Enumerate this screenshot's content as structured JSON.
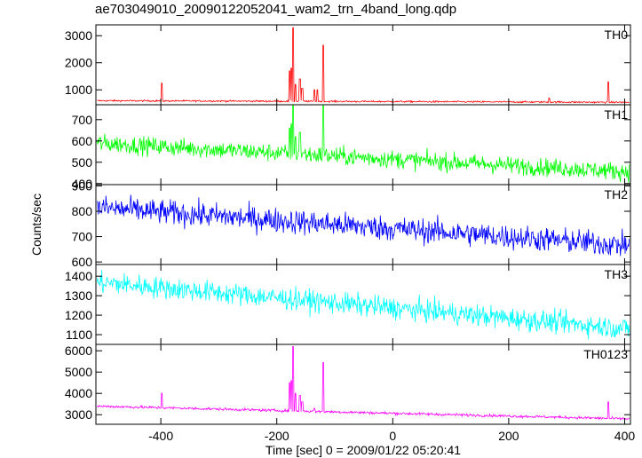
{
  "chart_data": {
    "type": "line",
    "title": "ae703049010_20090122052041_wam2_trn_4band_long.qdp",
    "xlabel": "Time [sec] 0 = 2009/01/22 05:20:41",
    "ylabel": "Counts/sec",
    "xlim": [
      -512,
      410
    ],
    "xticks": [
      -400,
      -200,
      0,
      200,
      400
    ],
    "panels": [
      {
        "name": "TH0",
        "color": "#ff0000",
        "ylim": [
          450,
          3400
        ],
        "yticks": [
          1000,
          2000,
          3000
        ],
        "start": 600,
        "end": 540,
        "noise": 22,
        "spikes": [
          [
            -398,
            1250
          ],
          [
            -178,
            1700
          ],
          [
            -175,
            1800
          ],
          [
            -172,
            3300
          ],
          [
            -168,
            1200
          ],
          [
            -160,
            1400
          ],
          [
            -156,
            1050
          ],
          [
            -135,
            1000
          ],
          [
            -130,
            1000
          ],
          [
            -120,
            2650
          ],
          [
            270,
            700
          ],
          [
            372,
            1300
          ]
        ]
      },
      {
        "name": "TH1",
        "color": "#00ff00",
        "ylim": [
          395,
          770
        ],
        "yticks": [
          400,
          500,
          600,
          700
        ],
        "start": 590,
        "end": 455,
        "noise": 30,
        "spikes": [
          [
            -178,
            660
          ],
          [
            -175,
            680
          ],
          [
            -172,
            770
          ],
          [
            -168,
            620
          ],
          [
            -160,
            640
          ],
          [
            -120,
            770
          ]
        ]
      },
      {
        "name": "TH2",
        "color": "#0000ff",
        "ylim": [
          590,
          905
        ],
        "yticks": [
          600,
          700,
          800,
          900
        ],
        "start": 815,
        "end": 665,
        "noise": 35,
        "spikes": []
      },
      {
        "name": "TH3",
        "color": "#00ffff",
        "ylim": [
          1050,
          1460
        ],
        "yticks": [
          1100,
          1200,
          1300,
          1400
        ],
        "start": 1370,
        "end": 1130,
        "noise": 40,
        "spikes": []
      },
      {
        "name": "TH0123",
        "color": "#ff00ff",
        "ylim": [
          2550,
          6300
        ],
        "yticks": [
          3000,
          4000,
          5000,
          6000
        ],
        "start": 3400,
        "end": 2800,
        "noise": 45,
        "spikes": [
          [
            -398,
            4000
          ],
          [
            -178,
            4500
          ],
          [
            -175,
            4600
          ],
          [
            -172,
            6200
          ],
          [
            -168,
            4000
          ],
          [
            -160,
            3900
          ],
          [
            -156,
            3600
          ],
          [
            -135,
            3300
          ],
          [
            -120,
            5450
          ],
          [
            372,
            3600
          ]
        ]
      }
    ]
  }
}
